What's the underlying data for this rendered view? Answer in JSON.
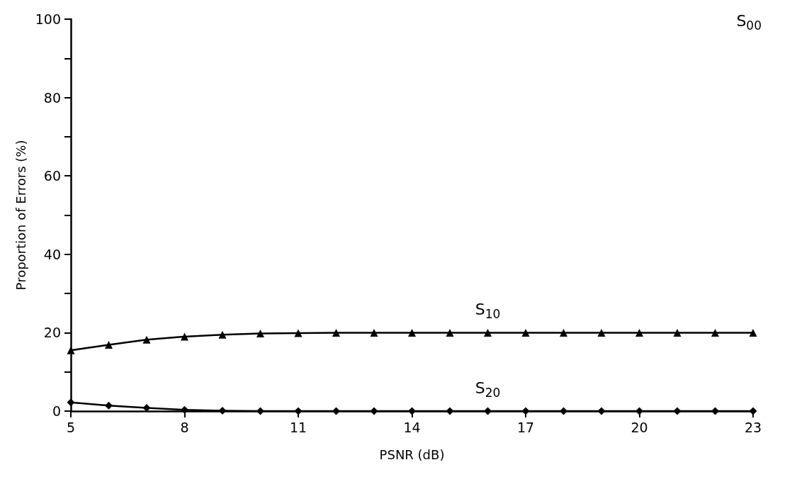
{
  "chart_data": {
    "type": "line",
    "xlabel": "PSNR (dB)",
    "ylabel": "Proportion of Errors (%)",
    "x": [
      5,
      6,
      7,
      8,
      9,
      10,
      11,
      12,
      13,
      14,
      15,
      16,
      17,
      18,
      19,
      20,
      21,
      22,
      23
    ],
    "series": [
      {
        "name": "S$_{10}$",
        "color": "#000000",
        "marker": "triangle",
        "values": [
          15.5,
          16.9,
          18.2,
          19.0,
          19.5,
          19.8,
          19.9,
          20,
          20,
          20,
          20,
          20,
          20,
          20,
          20,
          20,
          20,
          20,
          20
        ]
      },
      {
        "name": "S$_{20}$",
        "color": "#000000",
        "marker": "diamond",
        "values": [
          2.2,
          1.4,
          0.8,
          0.3,
          0.1,
          0,
          0,
          0,
          0,
          0,
          0,
          0,
          0,
          0,
          0,
          0,
          0,
          0,
          0
        ]
      }
    ],
    "annotations": [
      "S$_{00}$"
    ],
    "xlim": [
      5,
      23
    ],
    "xticks": [
      5,
      8,
      11,
      14,
      17,
      20,
      23
    ],
    "ylim": [
      0,
      100
    ],
    "yticks": [
      0,
      {
        "value": 10,
        "label": null
      },
      20,
      {
        "value": 30,
        "label": null
      },
      40,
      {
        "value": 50,
        "label": null
      },
      60,
      {
        "value": 70,
        "label": null
      },
      80,
      {
        "value": 90,
        "label": null
      },
      100
    ],
    "grid": false,
    "line_style": "solid"
  }
}
